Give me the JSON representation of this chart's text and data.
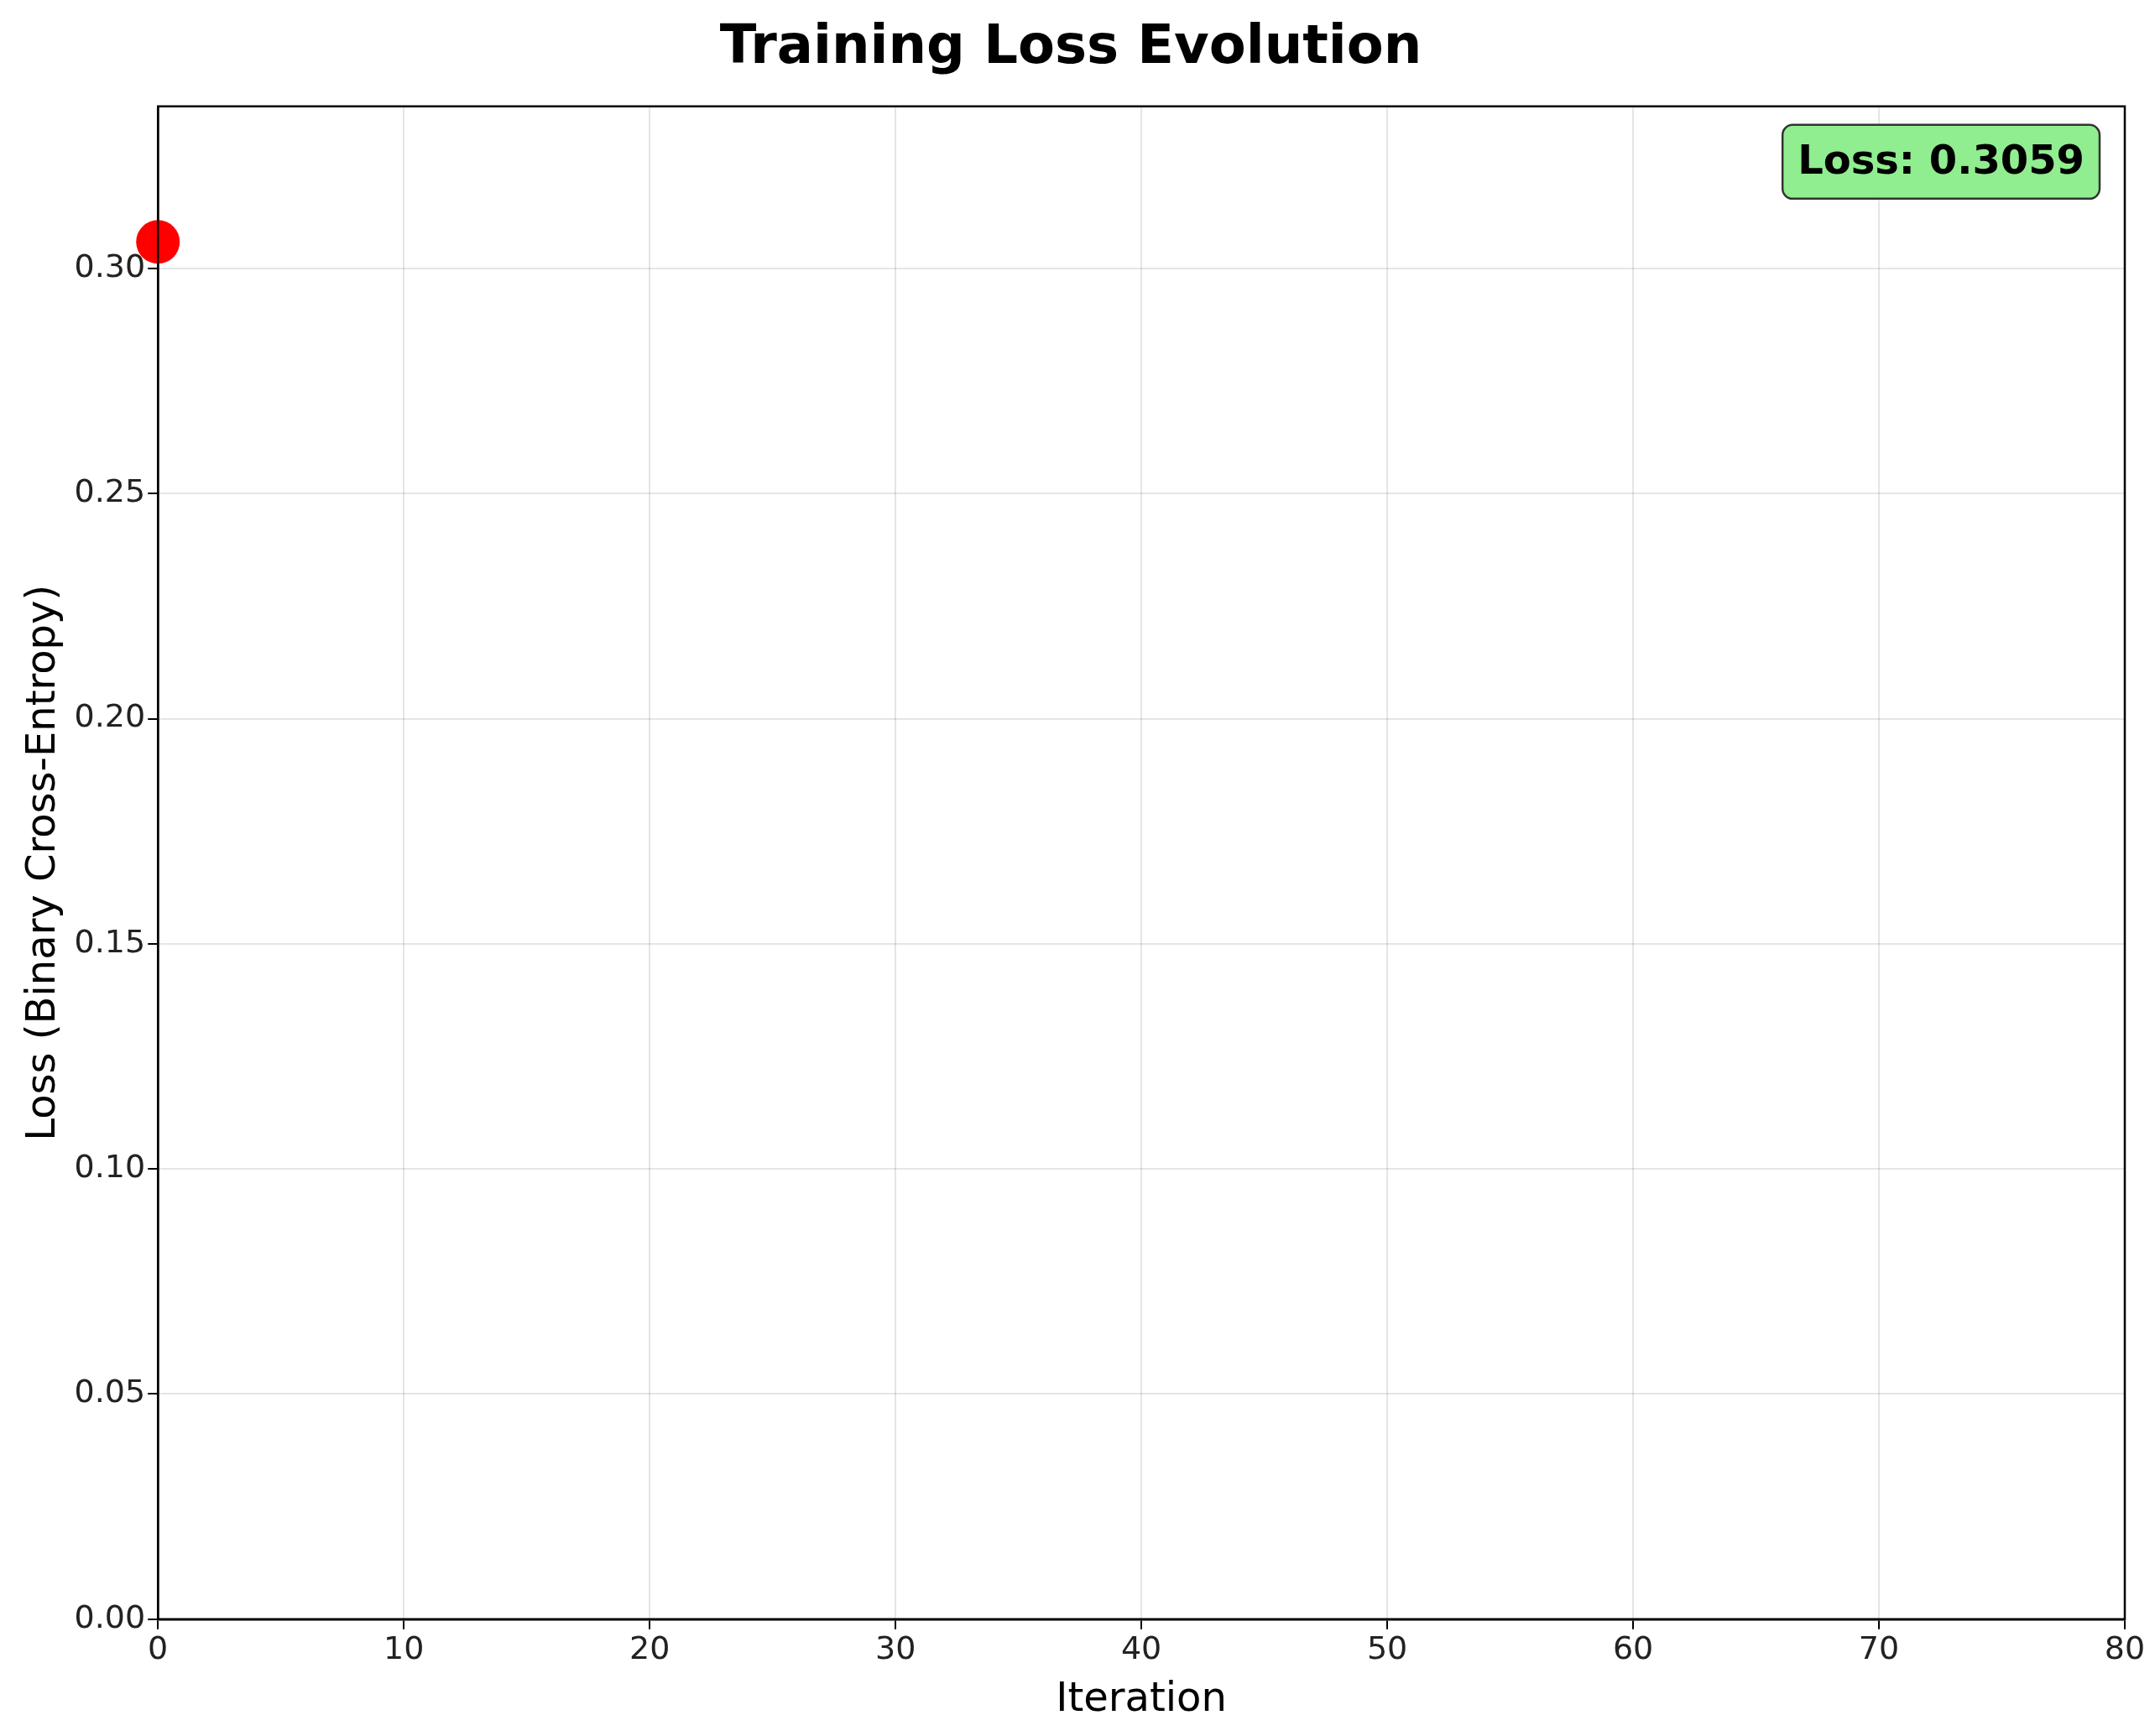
{
  "chart_data": {
    "type": "scatter",
    "title": "Training Loss Evolution",
    "xlabel": "Iteration",
    "ylabel": "Loss (Binary Cross-Entropy)",
    "x": [
      0
    ],
    "series": [
      {
        "color": "#ff0000",
        "values": [
          0.3059
        ]
      }
    ],
    "xlim": [
      0,
      80
    ],
    "xticks": [
      0,
      10,
      20,
      30,
      40,
      50,
      60,
      70,
      80
    ],
    "ylim": [
      0,
      0.336
    ],
    "yticks": [
      {
        "value": 0,
        "label": "0.00"
      },
      {
        "value": 0.05,
        "label": "0.05"
      },
      {
        "value": 0.1,
        "label": "0.10"
      },
      {
        "value": 0.15,
        "label": "0.15"
      },
      {
        "value": 0.2,
        "label": "0.20"
      },
      {
        "value": 0.25,
        "label": "0.25"
      },
      {
        "value": 0.3,
        "label": "0.30"
      }
    ],
    "grid": true,
    "marker": "circle",
    "legend": false,
    "annotations": [
      "Loss: 0.3059"
    ]
  }
}
